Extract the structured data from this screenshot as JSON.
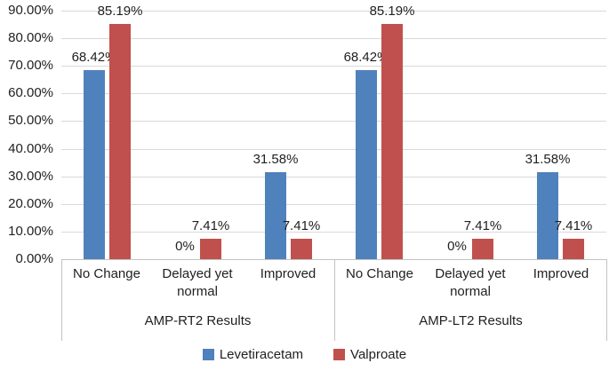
{
  "chart_data": {
    "type": "bar",
    "title": "",
    "groups": [
      "AMP-RT2 Results",
      "AMP-LT2 Results"
    ],
    "categories": [
      "No Change",
      "Delayed yet normal",
      "Improved"
    ],
    "series": [
      {
        "name": "Levetiracetam",
        "color": "#4F81BD",
        "values": [
          [
            68.42,
            0,
            31.58
          ],
          [
            68.42,
            0,
            31.58
          ]
        ],
        "labels": [
          [
            "68.42%",
            "0%",
            "31.58%"
          ],
          [
            "68.42%",
            "0%",
            "31.58%"
          ]
        ]
      },
      {
        "name": "Valproate",
        "color": "#C0504D",
        "values": [
          [
            85.19,
            7.41,
            7.41
          ],
          [
            85.19,
            7.41,
            7.41
          ]
        ],
        "labels": [
          [
            "85.19%",
            "7.41%",
            "7.41%"
          ],
          [
            "85.19%",
            "7.41%",
            "7.41%"
          ]
        ]
      }
    ],
    "y_axis": {
      "min": 0,
      "max": 90,
      "step": 10,
      "ticks": [
        "0.00%",
        "10.00%",
        "20.00%",
        "30.00%",
        "40.00%",
        "50.00%",
        "60.00%",
        "70.00%",
        "80.00%",
        "90.00%"
      ]
    },
    "legend_position": "bottom",
    "grid": true,
    "colors": {
      "gridline": "#d9d9d9",
      "axis": "#c3c3c3",
      "text": "#1f1f1f",
      "background": "#ffffff"
    }
  }
}
